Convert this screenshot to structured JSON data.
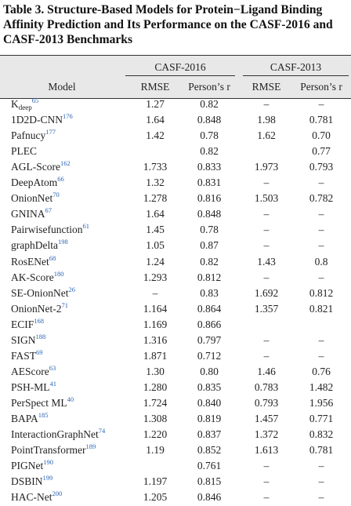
{
  "title": "Table 3. Structure-Based Models for Protein−Ligand Binding Affinity Prediction and Its Performance on the CASF-2016 and CASF-2013 Benchmarks",
  "table": {
    "groups": [
      "CASF-2016",
      "CASF-2013"
    ],
    "columns": [
      "Model",
      "RMSE",
      "Person’s r",
      "RMSE",
      "Person’s r"
    ],
    "rows": [
      {
        "model": {
          "text": "K",
          "sub": "deep",
          "ref": "65"
        },
        "cells": [
          "1.27",
          "0.82",
          "–",
          "–"
        ]
      },
      {
        "model": {
          "text": "1D2D-CNN",
          "ref": "176"
        },
        "cells": [
          "1.64",
          "0.848",
          "1.98",
          "0.781"
        ]
      },
      {
        "model": {
          "text": "Pafnucy",
          "ref": "177"
        },
        "cells": [
          "1.42",
          "0.78",
          "1.62",
          "0.70"
        ]
      },
      {
        "model": {
          "text": "PLEC"
        },
        "cells": [
          null,
          "0.82",
          null,
          "0.77"
        ]
      },
      {
        "model": {
          "text": "AGL-Score",
          "ref": "162"
        },
        "cells": [
          "1.733",
          "0.833",
          "1.973",
          "0.793"
        ]
      },
      {
        "model": {
          "text": "DeepAtom",
          "ref": "66"
        },
        "cells": [
          "1.32",
          "0.831",
          "–",
          "–"
        ]
      },
      {
        "model": {
          "text": "OnionNet",
          "ref": "70"
        },
        "cells": [
          "1.278",
          "0.816",
          "1.503",
          "0.782"
        ]
      },
      {
        "model": {
          "text": "GNINA",
          "ref": "67"
        },
        "cells": [
          "1.64",
          "0.848",
          "–",
          "–"
        ]
      },
      {
        "model": {
          "text": "Pairwisefunction",
          "ref": "61"
        },
        "cells": [
          "1.45",
          "0.78",
          "–",
          "–"
        ]
      },
      {
        "model": {
          "text": "graphDelta",
          "ref": "198"
        },
        "cells": [
          "1.05",
          "0.87",
          "–",
          "–"
        ]
      },
      {
        "model": {
          "text": "RosENet",
          "ref": "68"
        },
        "cells": [
          "1.24",
          "0.82",
          "1.43",
          "0.8"
        ]
      },
      {
        "model": {
          "text": "AK-Score",
          "ref": "180"
        },
        "cells": [
          "1.293",
          "0.812",
          "–",
          "–"
        ]
      },
      {
        "model": {
          "text": "SE-OnionNet",
          "ref": "26"
        },
        "cells": [
          "–",
          "0.83",
          "1.692",
          "0.812"
        ]
      },
      {
        "model": {
          "text": "OnionNet-2",
          "ref": "71"
        },
        "cells": [
          "1.164",
          "0.864",
          "1.357",
          "0.821"
        ]
      },
      {
        "model": {
          "text": "ECIF",
          "ref": "168"
        },
        "cells": [
          "1.169",
          "0.866",
          null,
          null
        ]
      },
      {
        "model": {
          "text": "SIGN",
          "ref": "188"
        },
        "cells": [
          "1.316",
          "0.797",
          "–",
          "–"
        ]
      },
      {
        "model": {
          "text": "FAST",
          "ref": "69"
        },
        "cells": [
          "1.871",
          "0.712",
          "–",
          "–"
        ]
      },
      {
        "model": {
          "text": "AEScore",
          "ref": "63"
        },
        "cells": [
          "1.30",
          "0.80",
          "1.46",
          "0.76"
        ]
      },
      {
        "model": {
          "text": "PSH-ML",
          "ref": "41"
        },
        "cells": [
          "1.280",
          "0.835",
          "0.783",
          "1.482"
        ]
      },
      {
        "model": {
          "text": "PerSpect ML",
          "ref": "40"
        },
        "cells": [
          "1.724",
          "0.840",
          "0.793",
          "1.956"
        ]
      },
      {
        "model": {
          "text": "BAPA",
          "ref": "185"
        },
        "cells": [
          "1.308",
          "0.819",
          "1.457",
          "0.771"
        ]
      },
      {
        "model": {
          "text": "InteractionGraphNet",
          "ref": "74"
        },
        "cells": [
          "1.220",
          "0.837",
          "1.372",
          "0.832"
        ]
      },
      {
        "model": {
          "text": "PointTransformer",
          "ref": "189"
        },
        "cells": [
          "1.19",
          "0.852",
          "1.613",
          "0.781"
        ]
      },
      {
        "model": {
          "text": "PIGNet",
          "ref": "190"
        },
        "cells": [
          null,
          "0.761",
          "–",
          "–"
        ]
      },
      {
        "model": {
          "text": "DSBIN",
          "ref": "199"
        },
        "cells": [
          "1.197",
          "0.815",
          "–",
          "–"
        ]
      },
      {
        "model": {
          "text": "HAC-Net",
          "ref": "200"
        },
        "cells": [
          "1.205",
          "0.846",
          "–",
          "–"
        ]
      }
    ]
  }
}
